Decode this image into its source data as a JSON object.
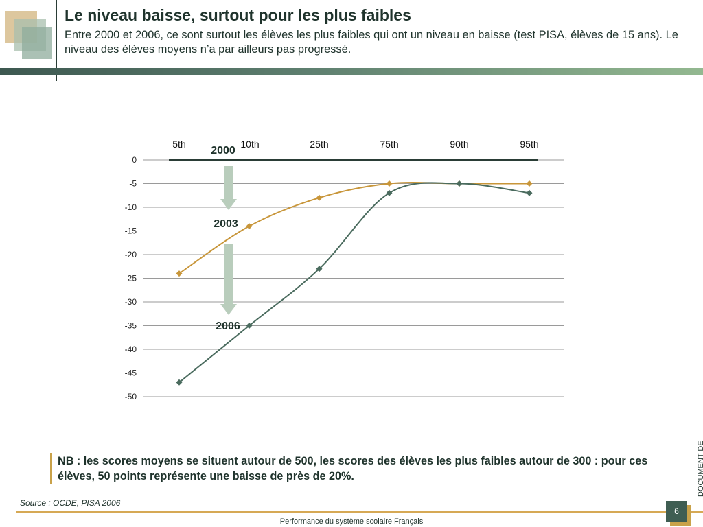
{
  "header": {
    "title": "Le niveau baisse, surtout pour les plus faibles",
    "subtitle": "Entre 2000 et 2006, ce sont surtout les élèves les plus faibles qui ont un niveau en baisse (test PISA, élèves de 15 ans). Le niveau des élèves moyens n’a par ailleurs pas progressé."
  },
  "chart_data": {
    "type": "line",
    "title": "",
    "xlabel": "",
    "ylabel": "",
    "categories": [
      "5th",
      "10th",
      "25th",
      "75th",
      "90th",
      "95th"
    ],
    "ylim": [
      -50,
      0
    ],
    "yticks": [
      0,
      -5,
      -10,
      -15,
      -20,
      -25,
      -30,
      -35,
      -40,
      -45,
      -50
    ],
    "grid": true,
    "x_axis_position": "top",
    "series": [
      {
        "name": "",
        "color": "#c8963a",
        "values": [
          -24,
          -14,
          -8,
          -5,
          -5,
          -5
        ]
      },
      {
        "name": "",
        "color": "#4a6b5e",
        "values": [
          -47,
          -35,
          -23,
          -7,
          -5,
          -7
        ]
      }
    ],
    "annotations": {
      "labels": [
        "2000",
        "2003",
        "2006"
      ],
      "arrow_color": "#b9cdbc"
    }
  },
  "note": {
    "prefix": "NB",
    "text": " : les scores moyens se situent autour de 500, les scores des élèves les plus faibles autour de 300 : pour ces élèves, 50 points représente une baisse de près de 20%."
  },
  "source": "Source : OCDE, PISA 2006",
  "side_label": "DOCUMENT DE",
  "footer": {
    "text": "Performance du système scolaire Français",
    "page_number": "6"
  },
  "colors": {
    "accent_gold": "#c8963a",
    "accent_green": "#4a6b5e",
    "logo": [
      "#d9c193",
      "#9fb7a6",
      "#7e9d8c"
    ]
  }
}
